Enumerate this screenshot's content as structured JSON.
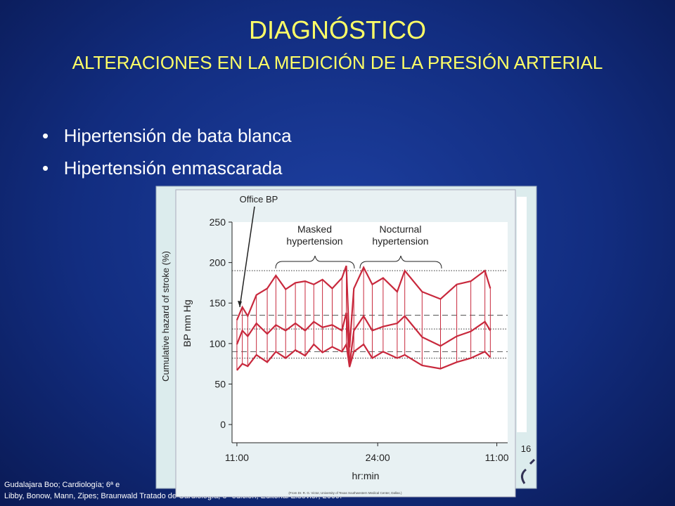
{
  "slide": {
    "title": "DIAGNÓSTICO",
    "subtitle": "ALTERACIONES EN LA MEDICIÓN DE LA PRESIÓN ARTERIAL",
    "bullets": [
      "Hipertensión de bata blanca",
      "Hipertensión enmascarada"
    ],
    "references": [
      "Gudalajara Boo; Cardiología; 6ª e",
      "Libby, Bonow, Mann, Zipes; Braunwald Tratado de Cardiología; 8ª edición; Editorial Elsevier; 2009."
    ]
  },
  "background_chart": {
    "y_label": "Cumulative hazard of stroke (%)",
    "x_tick": 16
  },
  "chart_data": {
    "type": "line",
    "y_label": "BP mm Hg",
    "x_label": "hr:min",
    "annotations": [
      "Office BP",
      "Masked hypertension",
      "Nocturnal hypertension"
    ],
    "credit": "(From Dr. R. G. Victor, University of Texas Southwestern Medical Center, Dallas.)",
    "x": [
      11.0,
      11.5,
      12.0,
      12.8,
      13.8,
      14.6,
      15.5,
      16.4,
      17.3,
      18.1,
      18.9,
      19.8,
      20.7,
      21.1,
      21.4,
      21.8,
      22.7,
      23.5,
      24.5,
      25.8,
      26.5,
      28.1,
      29.8,
      31.3,
      32.6,
      33.9,
      34.4
    ],
    "series": [
      {
        "color": "#c8283c",
        "values": [
          129,
          145,
          134,
          160,
          168,
          184,
          167,
          175,
          177,
          173,
          179,
          168,
          181,
          196,
          95,
          168,
          194,
          173,
          181,
          164,
          190,
          164,
          155,
          173,
          177,
          190,
          168
        ]
      },
      {
        "color": "#c8283c",
        "values": [
          99,
          116,
          109,
          125,
          112,
          123,
          116,
          125,
          116,
          127,
          120,
          123,
          116,
          138,
          73,
          116,
          134,
          116,
          121,
          125,
          134,
          108,
          97,
          109,
          115,
          127,
          116
        ]
      },
      {
        "color": "#c8283c",
        "values": [
          67,
          75,
          72,
          86,
          77,
          90,
          82,
          92,
          85,
          99,
          89,
          96,
          90,
          99,
          71,
          90,
          99,
          82,
          90,
          82,
          86,
          73,
          69,
          77,
          82,
          90,
          83
        ]
      }
    ],
    "dotted_lines": [
      190,
      118,
      82
    ],
    "dashed_lines": [
      135,
      90
    ],
    "xlim": [
      10.55,
      36.0
    ],
    "ylim": [
      -22.5,
      250
    ],
    "xticks": [
      {
        "value": 11,
        "label": "11:00"
      },
      {
        "value": 24,
        "label": "24:00"
      },
      {
        "value": 35,
        "label": "11:00"
      }
    ],
    "yticks": [
      0,
      50,
      100,
      150,
      200,
      250
    ]
  }
}
